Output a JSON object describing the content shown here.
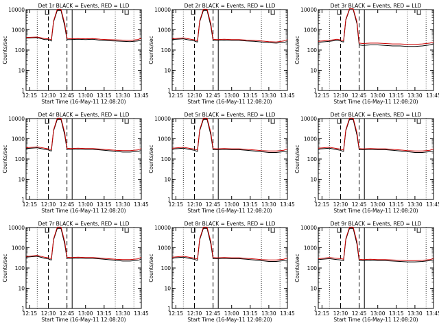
{
  "chart_data": [
    {
      "type": "line",
      "title": "Det 1r BLACK = Events, RED = LLD",
      "xlabel": "Start Time (16-May-11 12:08:20)",
      "ylabel": "Counts/sec",
      "x_ticks": [
        "12:15",
        "12:30",
        "12:45",
        "13:00",
        "13:15",
        "13:30",
        "13:45"
      ],
      "y_ticks": [
        "1",
        "10",
        "100",
        "1000",
        "10000"
      ],
      "ylim": [
        1,
        10000
      ],
      "y_scale": "log",
      "x": [
        12.2,
        12.35,
        12.45,
        12.5,
        12.52,
        12.54,
        12.57,
        12.62,
        12.67,
        12.72,
        12.75,
        12.8,
        12.9,
        13.0,
        13.1,
        13.2,
        13.3,
        13.4,
        13.5,
        13.6,
        13.7,
        13.75
      ],
      "series": [
        {
          "name": "Events",
          "color": "#000000",
          "values": [
            390,
            410,
            330,
            330,
            300,
            280,
            2500,
            9000,
            9000,
            1500,
            330,
            330,
            340,
            330,
            340,
            300,
            290,
            280,
            270,
            260,
            280,
            300
          ]
        },
        {
          "name": "LLD",
          "color": "#cc0000",
          "values": [
            420,
            440,
            370,
            360,
            340,
            330,
            2800,
            10500,
            10500,
            2000,
            380,
            360,
            370,
            360,
            370,
            340,
            330,
            320,
            310,
            300,
            330,
            380
          ]
        }
      ]
    },
    {
      "type": "line",
      "title": "Det 2r BLACK = Events, RED = LLD",
      "xlabel": "Start Time (16-May-11 12:08:20)",
      "ylabel": "Counts/sec",
      "x_ticks": [
        "12:15",
        "12:30",
        "12:45",
        "13:00",
        "13:15",
        "13:30",
        "13:45"
      ],
      "y_ticks": [
        "1",
        "10",
        "100",
        "1000",
        "10000"
      ],
      "ylim": [
        1,
        10000
      ],
      "y_scale": "log",
      "x": [
        12.2,
        12.35,
        12.45,
        12.5,
        12.52,
        12.54,
        12.57,
        12.62,
        12.67,
        12.72,
        12.75,
        12.8,
        12.9,
        13.0,
        13.1,
        13.2,
        13.3,
        13.4,
        13.5,
        13.6,
        13.7,
        13.75
      ],
      "series": [
        {
          "name": "Events",
          "color": "#000000",
          "values": [
            330,
            360,
            300,
            280,
            260,
            250,
            2500,
            9000,
            9000,
            1500,
            300,
            300,
            310,
            300,
            300,
            280,
            270,
            250,
            230,
            220,
            240,
            260
          ]
        },
        {
          "name": "LLD",
          "color": "#cc0000",
          "values": [
            360,
            400,
            340,
            320,
            300,
            290,
            2800,
            10500,
            10500,
            2000,
            340,
            330,
            340,
            330,
            330,
            310,
            300,
            280,
            260,
            250,
            280,
            330
          ]
        }
      ]
    },
    {
      "type": "line",
      "title": "Det 3r BLACK = Events, RED = LLD",
      "xlabel": "Start Time (16-May-11 12:08:20)",
      "ylabel": "Counts/sec",
      "x_ticks": [
        "12:15",
        "12:30",
        "12:45",
        "13:00",
        "13:15",
        "13:30",
        "13:45"
      ],
      "y_ticks": [
        "1",
        "10",
        "100",
        "1000",
        "10000"
      ],
      "ylim": [
        1,
        10000
      ],
      "y_scale": "log",
      "x": [
        12.2,
        12.35,
        12.45,
        12.5,
        12.52,
        12.54,
        12.57,
        12.62,
        12.67,
        12.72,
        12.75,
        12.8,
        12.9,
        13.0,
        13.1,
        13.2,
        13.3,
        13.4,
        13.5,
        13.6,
        13.7,
        13.75
      ],
      "series": [
        {
          "name": "Events",
          "color": "#000000",
          "values": [
            240,
            270,
            300,
            280,
            260,
            250,
            3000,
            10000,
            10000,
            2000,
            180,
            170,
            180,
            180,
            170,
            160,
            160,
            150,
            150,
            160,
            180,
            200
          ]
        },
        {
          "name": "LLD",
          "color": "#cc0000",
          "values": [
            270,
            300,
            340,
            320,
            300,
            290,
            3300,
            11000,
            11000,
            2500,
            220,
            210,
            220,
            220,
            210,
            200,
            200,
            190,
            190,
            200,
            220,
            240
          ]
        }
      ]
    },
    {
      "type": "line",
      "title": "Det 4r BLACK = Events, RED = LLD",
      "xlabel": "Start Time (16-May-11 12:08:20)",
      "ylabel": "Counts/sec",
      "x_ticks": [
        "12:15",
        "12:30",
        "12:45",
        "13:00",
        "13:15",
        "13:30",
        "13:45"
      ],
      "y_ticks": [
        "1",
        "10",
        "100",
        "1000",
        "10000"
      ],
      "ylim": [
        1,
        10000
      ],
      "y_scale": "log",
      "x": [
        12.2,
        12.35,
        12.45,
        12.5,
        12.52,
        12.54,
        12.57,
        12.62,
        12.67,
        12.72,
        12.75,
        12.8,
        12.9,
        13.0,
        13.1,
        13.2,
        13.3,
        13.4,
        13.5,
        13.6,
        13.7,
        13.75
      ],
      "series": [
        {
          "name": "Events",
          "color": "#000000",
          "values": [
            330,
            360,
            300,
            280,
            260,
            250,
            2500,
            9000,
            9000,
            1500,
            300,
            300,
            310,
            300,
            300,
            280,
            260,
            240,
            220,
            220,
            240,
            260
          ]
        },
        {
          "name": "LLD",
          "color": "#cc0000",
          "values": [
            360,
            400,
            340,
            320,
            300,
            290,
            2800,
            10500,
            10500,
            2000,
            340,
            330,
            340,
            330,
            330,
            310,
            290,
            270,
            260,
            260,
            280,
            330
          ]
        }
      ]
    },
    {
      "type": "line",
      "title": "Det 5r BLACK = Events, RED = LLD",
      "xlabel": "Start Time (16-May-11 12:08:20)",
      "ylabel": "Counts/sec",
      "x_ticks": [
        "12:15",
        "12:30",
        "12:45",
        "13:00",
        "13:15",
        "13:30",
        "13:45"
      ],
      "y_ticks": [
        "1",
        "10",
        "100",
        "1000",
        "10000"
      ],
      "ylim": [
        1,
        10000
      ],
      "y_scale": "log",
      "x": [
        12.2,
        12.35,
        12.45,
        12.5,
        12.52,
        12.54,
        12.57,
        12.62,
        12.67,
        12.72,
        12.75,
        12.8,
        12.9,
        13.0,
        13.1,
        13.2,
        13.3,
        13.4,
        13.5,
        13.6,
        13.7,
        13.75
      ],
      "series": [
        {
          "name": "Events",
          "color": "#000000",
          "values": [
            310,
            340,
            290,
            270,
            250,
            240,
            2500,
            9000,
            9000,
            1500,
            290,
            290,
            300,
            290,
            290,
            270,
            250,
            230,
            210,
            210,
            230,
            250
          ]
        },
        {
          "name": "LLD",
          "color": "#cc0000",
          "values": [
            340,
            380,
            330,
            310,
            290,
            280,
            2800,
            10500,
            10500,
            2000,
            330,
            320,
            330,
            320,
            320,
            300,
            280,
            260,
            250,
            250,
            270,
            320
          ]
        }
      ]
    },
    {
      "type": "line",
      "title": "Det 6r BLACK = Events, RED = LLD",
      "xlabel": "Start Time (16-May-11 12:08:20)",
      "ylabel": "Counts/sec",
      "x_ticks": [
        "12:15",
        "12:30",
        "12:45",
        "13:00",
        "13:15",
        "13:30",
        "13:45"
      ],
      "y_ticks": [
        "1",
        "10",
        "100",
        "1000",
        "10000"
      ],
      "ylim": [
        1,
        10000
      ],
      "y_scale": "log",
      "x": [
        12.2,
        12.35,
        12.45,
        12.5,
        12.52,
        12.54,
        12.57,
        12.62,
        12.67,
        12.72,
        12.75,
        12.8,
        12.9,
        13.0,
        13.1,
        13.2,
        13.3,
        13.4,
        13.5,
        13.6,
        13.7,
        13.75
      ],
      "series": [
        {
          "name": "Events",
          "color": "#000000",
          "values": [
            310,
            340,
            290,
            270,
            250,
            240,
            2500,
            9000,
            9000,
            1500,
            290,
            290,
            300,
            290,
            290,
            270,
            250,
            230,
            210,
            210,
            230,
            250
          ]
        },
        {
          "name": "LLD",
          "color": "#cc0000",
          "values": [
            340,
            380,
            330,
            310,
            290,
            280,
            2800,
            10500,
            10500,
            2000,
            330,
            320,
            330,
            320,
            320,
            300,
            280,
            260,
            250,
            250,
            270,
            320
          ]
        }
      ]
    },
    {
      "type": "line",
      "title": "Det 7r BLACK = Events, RED = LLD",
      "xlabel": "Start Time (16-May-11 12:08:20)",
      "ylabel": "Counts/sec",
      "x_ticks": [
        "12:15",
        "12:30",
        "12:45",
        "13:00",
        "13:15",
        "13:30",
        "13:45"
      ],
      "y_ticks": [
        "1",
        "10",
        "100",
        "1000",
        "10000"
      ],
      "ylim": [
        1,
        10000
      ],
      "y_scale": "log",
      "x": [
        12.2,
        12.35,
        12.45,
        12.5,
        12.52,
        12.54,
        12.57,
        12.62,
        12.67,
        12.72,
        12.75,
        12.8,
        12.9,
        13.0,
        13.1,
        13.2,
        13.3,
        13.4,
        13.5,
        13.6,
        13.7,
        13.75
      ],
      "series": [
        {
          "name": "Events",
          "color": "#000000",
          "values": [
            340,
            380,
            300,
            280,
            260,
            250,
            2500,
            9000,
            9000,
            1500,
            300,
            300,
            310,
            300,
            300,
            280,
            260,
            240,
            220,
            220,
            240,
            270
          ]
        },
        {
          "name": "LLD",
          "color": "#cc0000",
          "values": [
            370,
            420,
            340,
            320,
            300,
            290,
            2800,
            10500,
            10500,
            2000,
            340,
            330,
            340,
            330,
            330,
            310,
            290,
            270,
            260,
            260,
            280,
            340
          ]
        }
      ]
    },
    {
      "type": "line",
      "title": "Det 8r BLACK = Events, RED = LLD",
      "xlabel": "Start Time (16-May-11 12:08:20)",
      "ylabel": "Counts/sec",
      "x_ticks": [
        "12:15",
        "12:30",
        "12:45",
        "13:00",
        "13:15",
        "13:30",
        "13:45"
      ],
      "y_ticks": [
        "1",
        "10",
        "100",
        "1000",
        "10000"
      ],
      "ylim": [
        1,
        10000
      ],
      "y_scale": "log",
      "x": [
        12.2,
        12.35,
        12.45,
        12.5,
        12.52,
        12.54,
        12.57,
        12.62,
        12.67,
        12.72,
        12.75,
        12.8,
        12.9,
        13.0,
        13.1,
        13.2,
        13.3,
        13.4,
        13.5,
        13.6,
        13.7,
        13.75
      ],
      "series": [
        {
          "name": "Events",
          "color": "#000000",
          "values": [
            310,
            340,
            290,
            270,
            250,
            240,
            2500,
            9000,
            9000,
            1500,
            290,
            290,
            300,
            290,
            290,
            270,
            250,
            230,
            210,
            210,
            230,
            250
          ]
        },
        {
          "name": "LLD",
          "color": "#cc0000",
          "values": [
            340,
            380,
            330,
            310,
            290,
            280,
            2800,
            10500,
            10500,
            2000,
            330,
            320,
            330,
            320,
            320,
            300,
            280,
            260,
            250,
            250,
            270,
            320
          ]
        }
      ]
    },
    {
      "type": "line",
      "title": "Det 9r BLACK = Events, RED = LLD",
      "xlabel": "Start Time (16-May-11 12:08:20)",
      "ylabel": "Counts/sec",
      "x_ticks": [
        "12:15",
        "12:30",
        "12:45",
        "13:00",
        "13:15",
        "13:30",
        "13:45"
      ],
      "y_ticks": [
        "1",
        "10",
        "100",
        "1000",
        "10000"
      ],
      "ylim": [
        1,
        10000
      ],
      "y_scale": "log",
      "x": [
        12.2,
        12.35,
        12.45,
        12.5,
        12.52,
        12.54,
        12.57,
        12.62,
        12.67,
        12.72,
        12.75,
        12.8,
        12.9,
        13.0,
        13.1,
        13.2,
        13.3,
        13.4,
        13.5,
        13.6,
        13.7,
        13.75
      ],
      "series": [
        {
          "name": "Events",
          "color": "#000000",
          "values": [
            260,
            290,
            260,
            250,
            240,
            230,
            2500,
            9000,
            9000,
            1500,
            230,
            230,
            240,
            230,
            230,
            220,
            210,
            200,
            200,
            210,
            230,
            250
          ]
        },
        {
          "name": "LLD",
          "color": "#cc0000",
          "values": [
            290,
            330,
            300,
            290,
            280,
            270,
            2800,
            10500,
            10500,
            2000,
            270,
            260,
            270,
            260,
            260,
            250,
            240,
            230,
            230,
            240,
            260,
            290
          ]
        }
      ]
    }
  ]
}
